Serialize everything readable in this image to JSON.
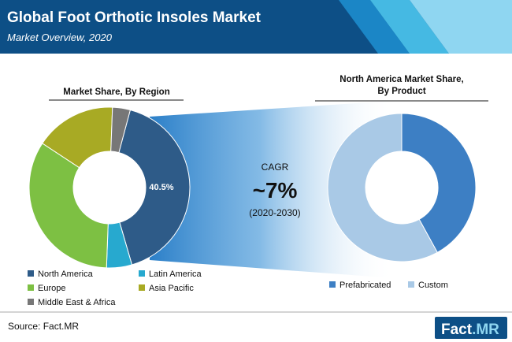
{
  "header": {
    "title": "Global Foot Orthotic Insoles Market",
    "subtitle": "Market Overview, 2020"
  },
  "cagr": {
    "label": "CAGR",
    "value": "~7%",
    "period": "(2020-2030)"
  },
  "source": "Source: Fact.MR",
  "brand": {
    "part1": "Fact",
    "part2": ".MR"
  },
  "colors": {
    "header_bg": "#0d4f86",
    "stripe_1": "#1b86c6",
    "stripe_2": "#45b9e3",
    "stripe_3": "#8fd6f1",
    "north_america": "#2e5b88",
    "latin_america": "#27a9cf",
    "europe": "#7dc043",
    "asia_pacific": "#a8aa24",
    "middle_east_africa": "#777777",
    "prefabricated": "#3d7fc4",
    "custom": "#a9c9e6",
    "funnel": "#2b7fc8"
  },
  "chart_data": [
    {
      "type": "pie",
      "title": "Market Share, By Region",
      "style": "donut",
      "series": [
        {
          "name": "North America",
          "value": 40.5,
          "color": "#2e5b88"
        },
        {
          "name": "Latin America",
          "value": 5.0,
          "color": "#27a9cf"
        },
        {
          "name": "Europe",
          "value": 33.0,
          "color": "#7dc043"
        },
        {
          "name": "Asia Pacific",
          "value": 16.0,
          "color": "#a8aa24"
        },
        {
          "name": "Middle East & Africa",
          "value": 3.5,
          "color": "#777777"
        }
      ],
      "data_labels": [
        "40.5%"
      ],
      "legend": "bottom"
    },
    {
      "type": "pie",
      "title": "North America Market Share, By Product",
      "style": "donut",
      "series": [
        {
          "name": "Prefabricated",
          "value": 42.0,
          "color": "#3d7fc4"
        },
        {
          "name": "Custom",
          "value": 58.0,
          "color": "#a9c9e6"
        }
      ],
      "legend": "bottom"
    }
  ]
}
